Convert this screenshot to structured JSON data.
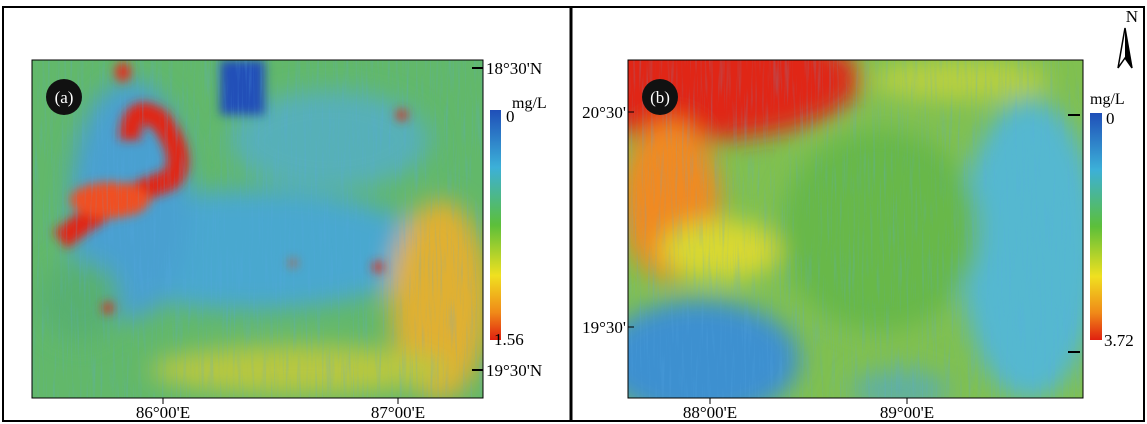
{
  "panels": [
    {
      "tag": "(a)",
      "lat_labels": [
        "18°30'N",
        "19°30'N"
      ],
      "lon_labels": [
        "86°00'E",
        "87°00'E"
      ],
      "colorbar": {
        "unit": "mg/L",
        "top": "0",
        "bottom": "1.56"
      }
    },
    {
      "tag": "(b)",
      "lat_labels": [
        "20°30'",
        "19°30'"
      ],
      "lon_labels": [
        "88°00'E",
        "89°00'E"
      ],
      "colorbar": {
        "unit": "mg/L",
        "top": "0",
        "bottom": "3.72"
      },
      "north": "N"
    }
  ]
}
